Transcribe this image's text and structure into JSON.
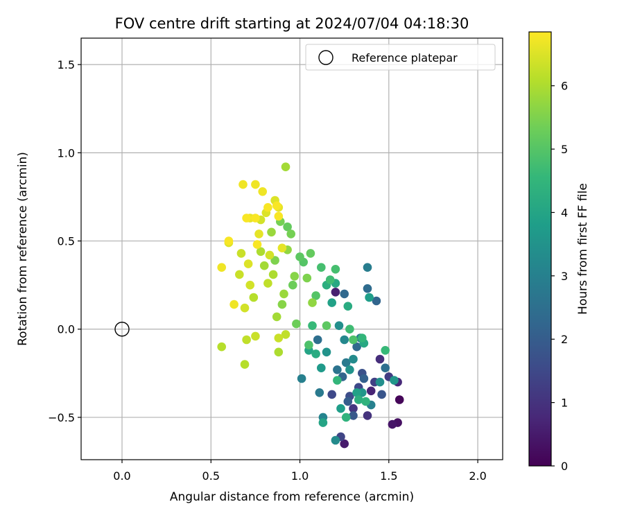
{
  "chart_data": {
    "type": "scatter",
    "title": "FOV centre drift starting at 2024/07/04 04:18:30",
    "xlabel": "Angular distance from reference (arcmin)",
    "ylabel": "Rotation from reference (arcmin)",
    "xlim": [
      -0.23,
      2.14
    ],
    "ylim": [
      -0.74,
      1.65
    ],
    "x_ticks": [
      0.0,
      0.5,
      1.0,
      1.5,
      2.0
    ],
    "x_tick_labels": [
      "0.0",
      "0.5",
      "1.0",
      "1.5",
      "2.0"
    ],
    "y_ticks": [
      -0.5,
      0.0,
      0.5,
      1.0,
      1.5
    ],
    "y_tick_labels": [
      "−0.5",
      "0.0",
      "0.5",
      "1.0",
      "1.5"
    ],
    "grid": true,
    "legend": {
      "placement": "top-right",
      "entries": [
        "Reference platepar"
      ]
    },
    "reference_point": {
      "name": "Reference platepar",
      "x": 0.0,
      "y": 0.0,
      "marker": "hollow-circle"
    },
    "colorbar": {
      "label": "Hours from first FF file",
      "min": 0,
      "max": 6.85,
      "ticks": [
        0,
        1,
        2,
        3,
        4,
        5,
        6
      ],
      "tick_labels": [
        "0",
        "1",
        "2",
        "3",
        "4",
        "5",
        "6"
      ],
      "colormap": "viridis",
      "colormap_stops": [
        "#440154",
        "#482878",
        "#3e4a89",
        "#31688e",
        "#26828e",
        "#1f9e89",
        "#35b779",
        "#6ece58",
        "#b5de2b",
        "#fde725"
      ]
    },
    "points": [
      [
        1.56,
        -0.4,
        0.1
      ],
      [
        1.55,
        -0.53,
        0.3
      ],
      [
        1.52,
        -0.54,
        0.4
      ],
      [
        1.25,
        -0.65,
        0.5
      ],
      [
        1.2,
        0.21,
        0.6
      ],
      [
        1.4,
        -0.35,
        0.7
      ],
      [
        1.55,
        -0.3,
        0.8
      ],
      [
        1.45,
        -0.17,
        0.9
      ],
      [
        1.38,
        -0.49,
        1.0
      ],
      [
        1.3,
        -0.45,
        1.1
      ],
      [
        1.5,
        -0.27,
        1.2
      ],
      [
        1.42,
        -0.3,
        1.3
      ],
      [
        1.23,
        -0.61,
        1.4
      ],
      [
        1.33,
        -0.33,
        1.5
      ],
      [
        1.18,
        -0.37,
        1.5
      ],
      [
        1.28,
        -0.38,
        1.6
      ],
      [
        1.35,
        -0.25,
        1.7
      ],
      [
        1.46,
        -0.37,
        1.8
      ],
      [
        1.3,
        -0.49,
        1.9
      ],
      [
        1.27,
        -0.41,
        2.0
      ],
      [
        1.36,
        -0.28,
        2.1
      ],
      [
        1.24,
        -0.27,
        2.2
      ],
      [
        1.43,
        0.16,
        2.2
      ],
      [
        1.25,
        0.2,
        2.3
      ],
      [
        1.32,
        -0.1,
        2.3
      ],
      [
        1.38,
        0.23,
        2.4
      ],
      [
        1.1,
        -0.06,
        2.5
      ],
      [
        1.48,
        -0.22,
        2.5
      ],
      [
        1.21,
        -0.23,
        2.6
      ],
      [
        1.34,
        -0.05,
        2.7
      ],
      [
        1.11,
        -0.36,
        2.8
      ],
      [
        1.26,
        -0.19,
        2.8
      ],
      [
        1.38,
        0.35,
        2.9
      ],
      [
        1.4,
        -0.43,
        3.0
      ],
      [
        1.01,
        -0.28,
        3.0
      ],
      [
        1.13,
        -0.5,
        3.1
      ],
      [
        1.25,
        -0.06,
        3.2
      ],
      [
        1.3,
        -0.17,
        3.3
      ],
      [
        1.2,
        -0.63,
        3.3
      ],
      [
        1.22,
        0.02,
        3.4
      ],
      [
        1.45,
        -0.3,
        3.4
      ],
      [
        1.15,
        -0.13,
        3.5
      ],
      [
        1.28,
        -0.23,
        3.5
      ],
      [
        1.53,
        -0.29,
        3.6
      ],
      [
        1.35,
        -0.36,
        3.6
      ],
      [
        1.12,
        -0.22,
        3.7
      ],
      [
        1.23,
        -0.45,
        3.8
      ],
      [
        1.39,
        0.18,
        3.8
      ],
      [
        1.18,
        0.15,
        3.9
      ],
      [
        1.32,
        -0.36,
        3.9
      ],
      [
        1.13,
        -0.53,
        4.0
      ],
      [
        1.05,
        -0.12,
        4.0
      ],
      [
        1.2,
        0.26,
        4.1
      ],
      [
        1.36,
        -0.08,
        4.1
      ],
      [
        1.27,
        0.13,
        4.2
      ],
      [
        1.09,
        -0.14,
        4.2
      ],
      [
        1.33,
        -0.4,
        4.3
      ],
      [
        1.15,
        0.25,
        4.3
      ],
      [
        1.26,
        -0.5,
        4.4
      ],
      [
        1.37,
        -0.41,
        4.4
      ],
      [
        1.21,
        -0.29,
        4.5
      ],
      [
        1.35,
        -0.05,
        4.5
      ],
      [
        1.48,
        -0.12,
        4.6
      ],
      [
        1.07,
        0.02,
        4.6
      ],
      [
        1.17,
        0.28,
        4.7
      ],
      [
        1.28,
        0.0,
        4.7
      ],
      [
        1.12,
        0.35,
        4.8
      ],
      [
        1.2,
        0.34,
        4.8
      ],
      [
        1.05,
        -0.09,
        4.9
      ],
      [
        1.3,
        -0.06,
        4.9
      ],
      [
        1.09,
        0.19,
        5.0
      ],
      [
        1.02,
        0.38,
        5.0
      ],
      [
        1.15,
        0.02,
        5.1
      ],
      [
        1.0,
        0.41,
        5.1
      ],
      [
        1.06,
        0.43,
        5.2
      ],
      [
        0.93,
        0.58,
        5.2
      ],
      [
        0.96,
        0.25,
        5.3
      ],
      [
        0.98,
        0.03,
        5.3
      ],
      [
        0.89,
        0.61,
        5.4
      ],
      [
        0.95,
        0.54,
        5.4
      ],
      [
        0.86,
        0.39,
        5.5
      ],
      [
        1.04,
        0.29,
        5.5
      ],
      [
        0.9,
        0.14,
        5.6
      ],
      [
        0.97,
        0.3,
        5.6
      ],
      [
        1.07,
        0.15,
        5.7
      ],
      [
        0.93,
        0.45,
        5.7
      ],
      [
        0.84,
        0.55,
        5.8
      ],
      [
        0.91,
        0.2,
        5.8
      ],
      [
        0.8,
        0.36,
        5.9
      ],
      [
        0.87,
        0.07,
        5.9
      ],
      [
        0.92,
        0.92,
        5.9
      ],
      [
        0.88,
        -0.13,
        6.0
      ],
      [
        0.78,
        0.44,
        6.0
      ],
      [
        0.85,
        0.31,
        6.0
      ],
      [
        0.69,
        -0.2,
        6.1
      ],
      [
        0.56,
        -0.1,
        6.1
      ],
      [
        0.74,
        0.18,
        6.1
      ],
      [
        0.82,
        0.26,
        6.2
      ],
      [
        0.92,
        -0.03,
        6.2
      ],
      [
        0.7,
        -0.06,
        6.2
      ],
      [
        0.66,
        0.31,
        6.3
      ],
      [
        0.75,
        -0.04,
        6.3
      ],
      [
        0.88,
        -0.05,
        6.3
      ],
      [
        0.67,
        0.43,
        6.3
      ],
      [
        0.83,
        0.42,
        6.4
      ],
      [
        0.78,
        0.62,
        6.4
      ],
      [
        0.72,
        0.25,
        6.4
      ],
      [
        0.69,
        0.12,
        6.4
      ],
      [
        0.81,
        0.66,
        6.5
      ],
      [
        0.71,
        0.37,
        6.5
      ],
      [
        0.86,
        0.73,
        6.5
      ],
      [
        0.6,
        0.49,
        6.5
      ],
      [
        0.77,
        0.54,
        6.6
      ],
      [
        0.88,
        0.69,
        6.6
      ],
      [
        0.72,
        0.63,
        6.6
      ],
      [
        0.9,
        0.46,
        6.6
      ],
      [
        0.75,
        0.82,
        6.7
      ],
      [
        0.68,
        0.82,
        6.7
      ],
      [
        0.79,
        0.78,
        6.7
      ],
      [
        0.63,
        0.14,
        6.7
      ],
      [
        0.56,
        0.35,
        6.7
      ],
      [
        0.87,
        0.7,
        6.8
      ],
      [
        0.75,
        0.63,
        6.8
      ],
      [
        0.6,
        0.5,
        6.8
      ],
      [
        0.7,
        0.63,
        6.8
      ],
      [
        0.76,
        0.48,
        6.8
      ],
      [
        0.82,
        0.69,
        6.8
      ],
      [
        0.88,
        0.64,
        6.8
      ]
    ]
  }
}
